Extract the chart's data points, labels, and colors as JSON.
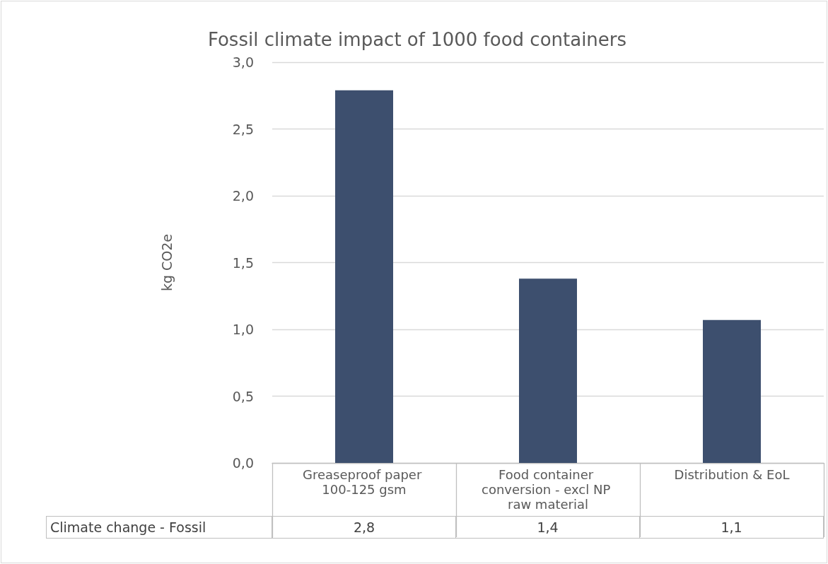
{
  "chart_data": {
    "type": "bar",
    "title": "Fossil climate impact of 1000 food containers",
    "ylabel": "kg CO2e",
    "categories": [
      "Greaseproof paper 100-125 gsm",
      "Food container conversion - excl NP raw material",
      "Distribution & EoL"
    ],
    "series": [
      {
        "name": "Climate change - Fossil",
        "color": "#3d4f6e",
        "values": [
          2.79,
          1.38,
          1.07
        ],
        "value_labels": [
          "2,8",
          "1,4",
          "1,1"
        ]
      }
    ],
    "ylim": [
      0,
      3
    ],
    "yticks": [
      {
        "value": 0,
        "label": "0,0"
      },
      {
        "value": 0.5,
        "label": "0,5"
      },
      {
        "value": 1,
        "label": "1,0"
      },
      {
        "value": 1.5,
        "label": "1,5"
      },
      {
        "value": 2,
        "label": "2,0"
      },
      {
        "value": 2.5,
        "label": "2,5"
      },
      {
        "value": 3,
        "label": "3,0"
      }
    ],
    "grid": "y",
    "legend": false
  }
}
